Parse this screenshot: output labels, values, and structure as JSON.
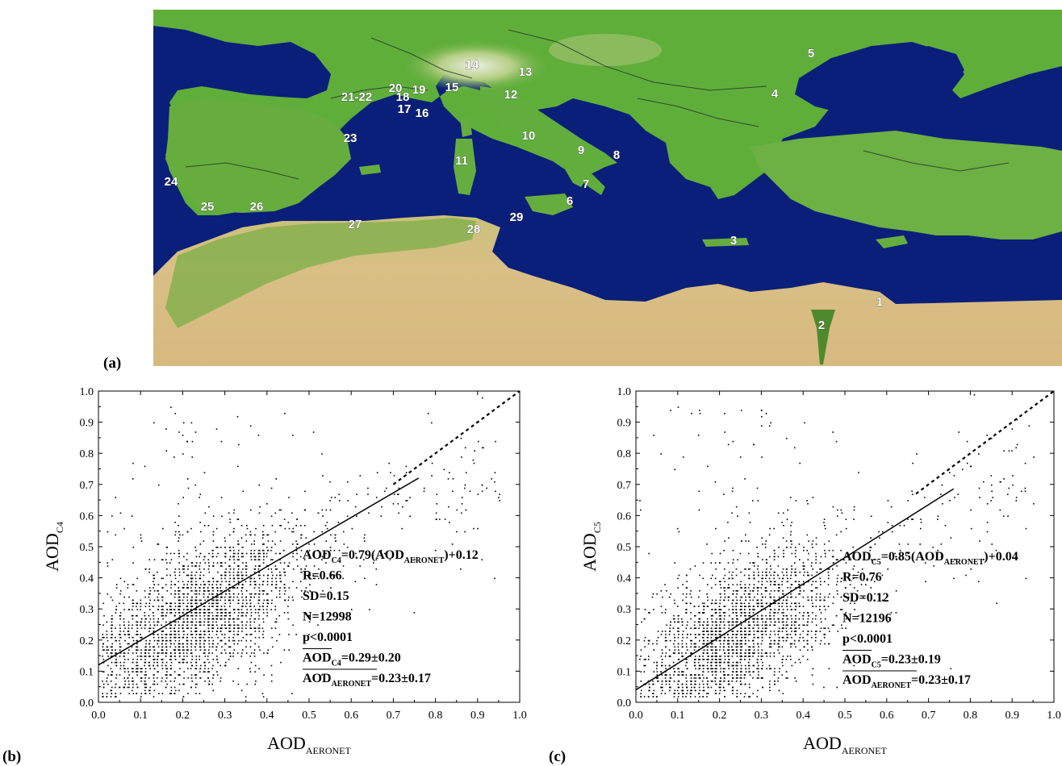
{
  "panel_labels": {
    "a": "(a)",
    "b": "(b)",
    "c": "(c)"
  },
  "map": {
    "colors": {
      "sea": "#0a1f7a",
      "land": "#5fae3a",
      "highland": "#a7c96a",
      "desert": "#d9bf85",
      "label": "#ffffff"
    },
    "sites": [
      {
        "id": "1",
        "label": "1"
      },
      {
        "id": "2",
        "label": "2"
      },
      {
        "id": "3",
        "label": "3"
      },
      {
        "id": "4",
        "label": "4"
      },
      {
        "id": "5",
        "label": "5"
      },
      {
        "id": "6",
        "label": "6"
      },
      {
        "id": "7",
        "label": "7"
      },
      {
        "id": "8",
        "label": "8"
      },
      {
        "id": "9",
        "label": "9"
      },
      {
        "id": "10",
        "label": "10"
      },
      {
        "id": "11",
        "label": "11"
      },
      {
        "id": "12",
        "label": "12"
      },
      {
        "id": "13",
        "label": "13"
      },
      {
        "id": "14",
        "label": "14"
      },
      {
        "id": "15",
        "label": "15"
      },
      {
        "id": "16",
        "label": "16"
      },
      {
        "id": "17",
        "label": "17"
      },
      {
        "id": "18",
        "label": "18"
      },
      {
        "id": "19",
        "label": "19"
      },
      {
        "id": "20",
        "label": "20"
      },
      {
        "id": "21-22",
        "label": "21-22"
      },
      {
        "id": "23",
        "label": "23"
      },
      {
        "id": "24",
        "label": "24"
      },
      {
        "id": "25",
        "label": "25"
      },
      {
        "id": "26",
        "label": "26"
      },
      {
        "id": "27",
        "label": "27"
      },
      {
        "id": "28",
        "label": "28"
      },
      {
        "id": "29",
        "label": "29"
      }
    ]
  },
  "chart_data": [
    {
      "type": "scatter",
      "panel": "(b)",
      "xlabel": {
        "main": "AOD",
        "sub": "AERONET"
      },
      "ylabel": {
        "main": "AOD",
        "sub": "C4"
      },
      "xlim": [
        0.0,
        1.0
      ],
      "ylim": [
        0.0,
        1.0
      ],
      "xticks": [
        "0.0",
        "0.1",
        "0.2",
        "0.3",
        "0.4",
        "0.5",
        "0.6",
        "0.7",
        "0.8",
        "0.9",
        "1.0"
      ],
      "yticks": [
        "0.0",
        "0.1",
        "0.2",
        "0.3",
        "0.4",
        "0.5",
        "0.6",
        "0.7",
        "0.8",
        "0.9",
        "1.0"
      ],
      "grid": false,
      "fit": {
        "slope": 0.79,
        "intercept": 0.12,
        "x_range": [
          0.0,
          0.76
        ]
      },
      "one_to_one": {
        "x_range": [
          0.7,
          1.0
        ]
      },
      "points_summary": {
        "count": 12998,
        "mean_x": 0.23,
        "sd_x": 0.17,
        "mean_y": 0.29,
        "sd_y": 0.2,
        "r": 0.66
      },
      "annotation": {
        "eq_pre": "AOD",
        "eq_sub1": "C4",
        "eq_mid": "=0.79(AOD",
        "eq_sub2": "AERONET",
        "eq_post": ")+0.12",
        "r": "R=0.66",
        "sd": "SD=0.15",
        "n": "N=12998",
        "p": "p<0.0001",
        "mean_y_pre": "AOD",
        "mean_y_sub": "C4",
        "mean_y_post": "=0.29±0.20",
        "mean_x_pre": "AOD",
        "mean_x_sub": "AERONET",
        "mean_x_post": "=0.23±0.17"
      }
    },
    {
      "type": "scatter",
      "panel": "(c)",
      "xlabel": {
        "main": "AOD",
        "sub": "AERONET"
      },
      "ylabel": {
        "main": "AOD",
        "sub": "C5"
      },
      "xlim": [
        0.0,
        1.0
      ],
      "ylim": [
        0.0,
        1.0
      ],
      "xticks": [
        "0.0",
        "0.1",
        "0.2",
        "0.3",
        "0.4",
        "0.5",
        "0.6",
        "0.7",
        "0.8",
        "0.9",
        "1.0"
      ],
      "yticks": [
        "0.0",
        "0.1",
        "0.2",
        "0.3",
        "0.4",
        "0.5",
        "0.6",
        "0.7",
        "0.8",
        "0.9",
        "1.0"
      ],
      "grid": false,
      "fit": {
        "slope": 0.85,
        "intercept": 0.04,
        "x_range": [
          0.0,
          0.76
        ]
      },
      "one_to_one": {
        "x_range": [
          0.67,
          1.0
        ]
      },
      "points_summary": {
        "count": 12196,
        "mean_x": 0.23,
        "sd_x": 0.17,
        "mean_y": 0.23,
        "sd_y": 0.19,
        "r": 0.76
      },
      "annotation": {
        "eq_pre": "AOD",
        "eq_sub1": "C5",
        "eq_mid": "=0.85(AOD",
        "eq_sub2": "AERONET",
        "eq_post": ")+0.04",
        "r": "R=0.76",
        "sd": "SD=0.12",
        "n": "N=12196",
        "p": "p<0.0001",
        "mean_y_pre": "AOD",
        "mean_y_sub": "C5",
        "mean_y_post": "=0.23±0.19",
        "mean_x_pre": "AOD",
        "mean_x_sub": "AERONET",
        "mean_x_post": "=0.23±0.17"
      }
    }
  ]
}
